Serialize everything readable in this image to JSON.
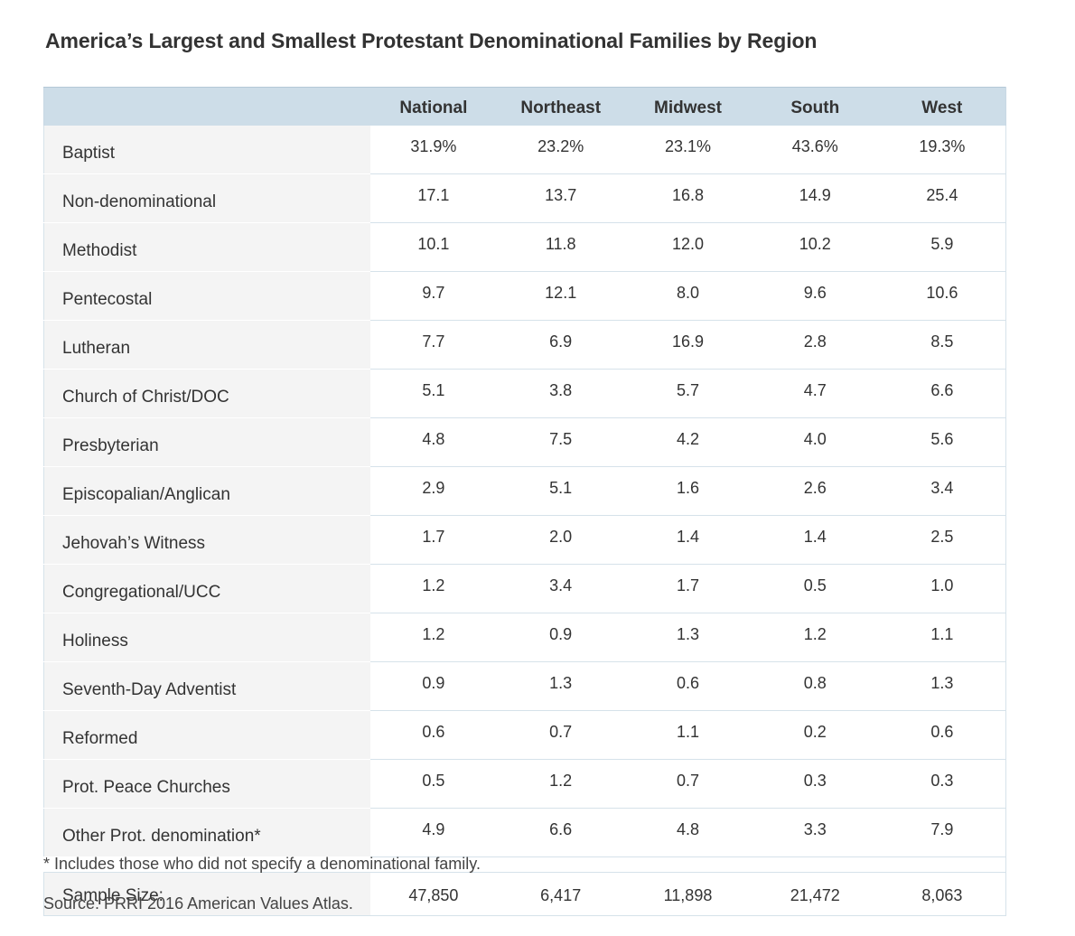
{
  "chart_data": {
    "type": "table",
    "title": "America’s Largest and Smallest Protestant Denominational Families by Region",
    "columns": [
      "National",
      "Northeast",
      "Midwest",
      "South",
      "West"
    ],
    "rows": [
      {
        "label": "Baptist",
        "values": [
          "31.9%",
          "23.2%",
          "23.1%",
          "43.6%",
          "19.3%"
        ]
      },
      {
        "label": "Non-denominational",
        "values": [
          "17.1",
          "13.7",
          "16.8",
          "14.9",
          "25.4"
        ]
      },
      {
        "label": "Methodist",
        "values": [
          "10.1",
          "11.8",
          "12.0",
          "10.2",
          "5.9"
        ]
      },
      {
        "label": "Pentecostal",
        "values": [
          "9.7",
          "12.1",
          "8.0",
          "9.6",
          "10.6"
        ]
      },
      {
        "label": "Lutheran",
        "values": [
          "7.7",
          "6.9",
          "16.9",
          "2.8",
          "8.5"
        ]
      },
      {
        "label": "Church of Christ/DOC",
        "values": [
          "5.1",
          "3.8",
          "5.7",
          "4.7",
          "6.6"
        ]
      },
      {
        "label": "Presbyterian",
        "values": [
          "4.8",
          "7.5",
          "4.2",
          "4.0",
          "5.6"
        ]
      },
      {
        "label": "Episcopalian/Anglican",
        "values": [
          "2.9",
          "5.1",
          "1.6",
          "2.6",
          "3.4"
        ]
      },
      {
        "label": "Jehovah’s Witness",
        "values": [
          "1.7",
          "2.0",
          "1.4",
          "1.4",
          "2.5"
        ]
      },
      {
        "label": "Congregational/UCC",
        "values": [
          "1.2",
          "3.4",
          "1.7",
          "0.5",
          "1.0"
        ]
      },
      {
        "label": "Holiness",
        "values": [
          "1.2",
          "0.9",
          "1.3",
          "1.2",
          "1.1"
        ]
      },
      {
        "label": "Seventh-Day Adventist",
        "values": [
          "0.9",
          "1.3",
          "0.6",
          "0.8",
          "1.3"
        ]
      },
      {
        "label": "Reformed",
        "values": [
          "0.6",
          "0.7",
          "1.1",
          "0.2",
          "0.6"
        ]
      },
      {
        "label": "Prot. Peace Churches",
        "values": [
          "0.5",
          "1.2",
          "0.7",
          "0.3",
          "0.3"
        ]
      },
      {
        "label": "Other Prot. denomination*",
        "values": [
          "4.9",
          "6.6",
          "4.8",
          "3.3",
          "7.9"
        ]
      }
    ],
    "sample_size": {
      "label": "Sample Size:",
      "values": [
        "47,850",
        "6,417",
        "11,898",
        "21,472",
        "8,063"
      ]
    },
    "footnote": "* Includes those who did not specify a denominational family.",
    "source": "Source: PRRI 2016 American Values Atlas."
  },
  "colors": {
    "header_bg": "#cddde8",
    "label_bg": "#f4f4f4",
    "border": "#d6e2ea",
    "text": "#333333"
  }
}
